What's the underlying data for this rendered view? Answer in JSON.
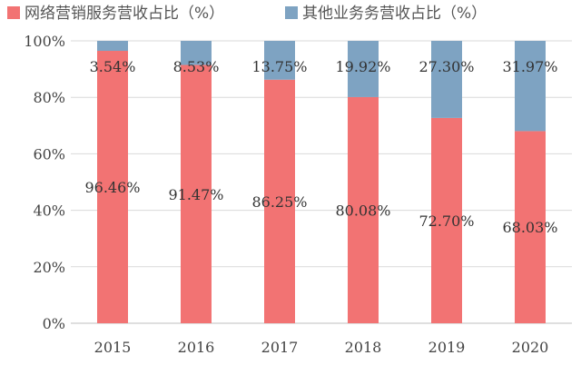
{
  "chart_data": {
    "type": "bar",
    "stacked": true,
    "categories": [
      "2015",
      "2016",
      "2017",
      "2018",
      "2019",
      "2020"
    ],
    "series": [
      {
        "name": "网络营销服务营收占比（%）",
        "color": "#f27373",
        "values": [
          96.46,
          91.47,
          86.25,
          80.08,
          72.7,
          68.03
        ],
        "labels": [
          "96.46%",
          "91.47%",
          "86.25%",
          "80.08%",
          "72.70%",
          "68.03%"
        ]
      },
      {
        "name": "其他业务务营收占比（%）",
        "color": "#7ea3c2",
        "values": [
          3.54,
          8.53,
          13.75,
          19.92,
          27.3,
          31.97
        ],
        "labels": [
          "3.54%",
          "8.53%",
          "13.75%",
          "19.92%",
          "27.30%",
          "31.97%"
        ]
      }
    ],
    "yticks": [
      "0%",
      "20%",
      "40%",
      "60%",
      "80%",
      "100%"
    ],
    "ylim": [
      0,
      100
    ],
    "grid": true,
    "legend": "top"
  }
}
